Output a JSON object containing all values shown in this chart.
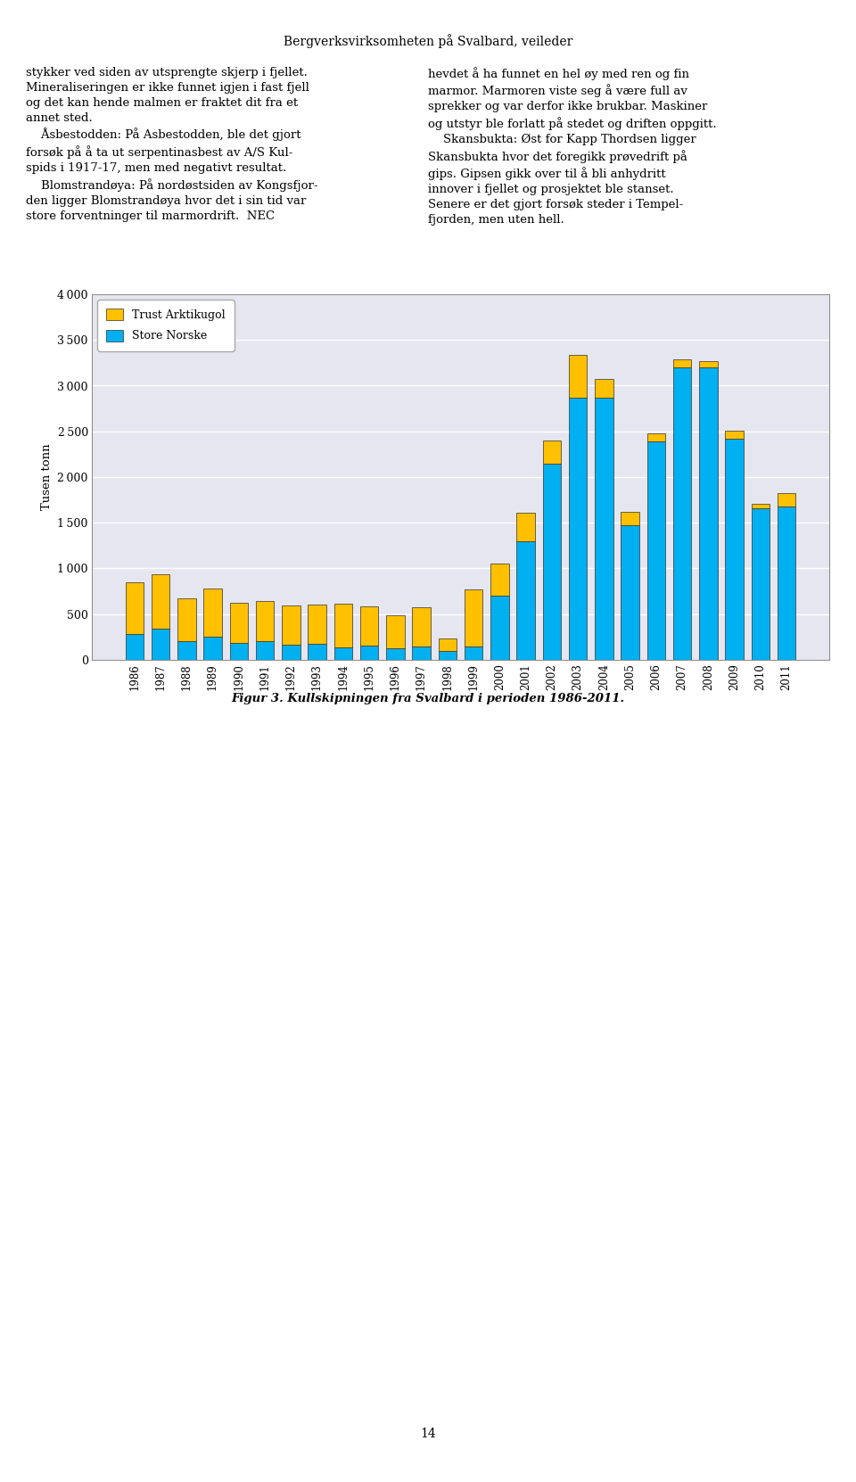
{
  "years": [
    1986,
    1987,
    1988,
    1989,
    1990,
    1991,
    1992,
    1993,
    1994,
    1995,
    1996,
    1997,
    1998,
    1999,
    2000,
    2001,
    2002,
    2003,
    2004,
    2005,
    2006,
    2007,
    2008,
    2009,
    2010,
    2011
  ],
  "store_norske": [
    280,
    340,
    200,
    250,
    190,
    200,
    170,
    180,
    140,
    160,
    130,
    150,
    100,
    150,
    700,
    1300,
    2150,
    2870,
    2870,
    1470,
    2390,
    3200,
    3200,
    2420,
    1660,
    1680
  ],
  "trust_arktikugol": [
    570,
    600,
    470,
    530,
    430,
    440,
    430,
    420,
    470,
    430,
    360,
    430,
    130,
    620,
    350,
    310,
    250,
    470,
    200,
    150,
    90,
    90,
    70,
    90,
    50,
    140
  ],
  "color_store_norske": "#00B0F0",
  "color_trust_arktikugol": "#FFC000",
  "background_color": "#E6E6F0",
  "ylabel": "Tusen tonn",
  "ylim": [
    0,
    4000
  ],
  "yticks": [
    0,
    500,
    1000,
    1500,
    2000,
    2500,
    3000,
    3500,
    4000
  ],
  "legend_trust": "Trust Arktikugol",
  "legend_store": "Store Norske",
  "caption": "Figur 3. Kullskipningen fra Svalbard i perioden 1986-2011.",
  "header": "Bergverksvirksomheten på Svalbard, veileder",
  "page_number": "14",
  "left_text_line1": "stykker ved siden av utsprengte skjerp i fjellet.",
  "left_text_line2": "Mineraliseringen er ikke funnet igjen i fast fjell",
  "left_text_line3": "og det kan hende malmen er fraktet dit fra et",
  "left_text_line4": "annet sted.",
  "left_text_line5": "    Åsbestodden: På Asbestodden, ble det gjort",
  "left_text_line6": "forsøk på å ta ut serpentinasbest av A/S Kul-",
  "left_text_line7": "spids i 1917-17, men med negativt resultat.",
  "left_text_line8": "    Blomstrandøya: På nordøstsiden av Kongsfjor-",
  "left_text_line9": "den ligger Blomstrandøya hvor det i sin tid var",
  "left_text_line10": "store forventninger til marmordrift.  NEC",
  "right_text_line1": "hevdet å ha funnet en hel øy med ren og fin",
  "right_text_line2": "marmor. Marmoren viste seg å være full av",
  "right_text_line3": "sprekker og var derfor ikke brukbar. Maskiner",
  "right_text_line4": "og utstyr ble forlatt på stedet og driften oppgitt.",
  "right_text_line5": "    Skansbukta: Øst for Kapp Thordsen ligger",
  "right_text_line6": "Skansbukta hvor det foregikk prøvedrift på",
  "right_text_line7": "gips. Gipsen gikk over til å bli anhydritt",
  "right_text_line8": "innover i fjellet og prosjektet ble stanset.",
  "right_text_line9": "Senere er det gjort forsøk steder i Tempel-",
  "right_text_line10": "fjorden, men uten hell."
}
